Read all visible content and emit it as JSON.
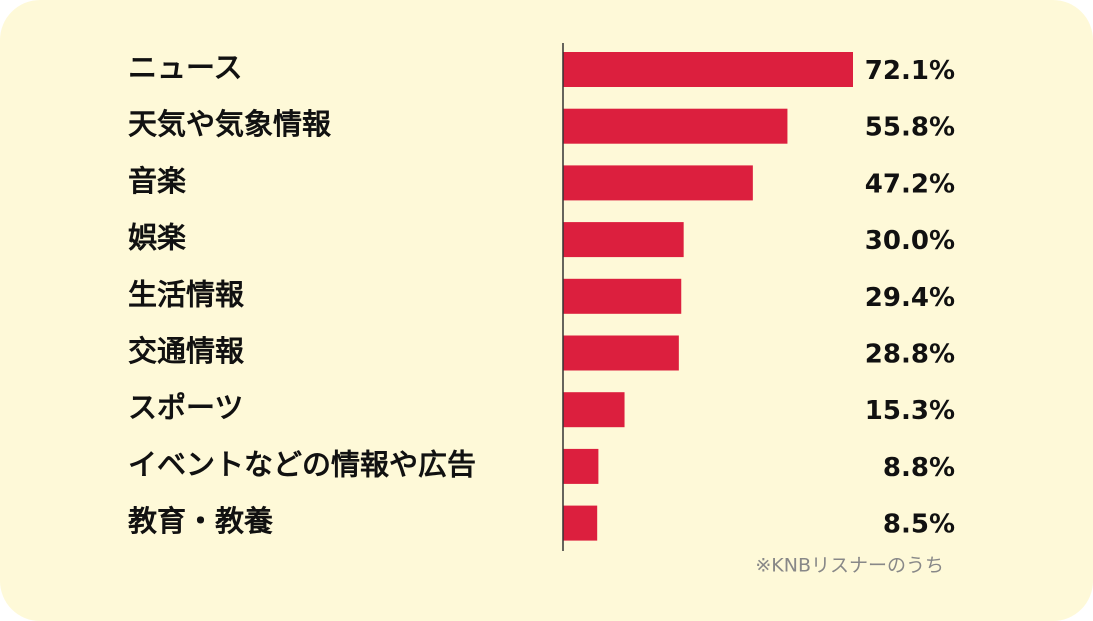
{
  "chart_data": {
    "type": "bar",
    "orientation": "horizontal",
    "categories": [
      "ニュース",
      "天気や気象情報",
      "音楽",
      "娯楽",
      "生活情報",
      "交通情報",
      "スポーツ",
      "イベントなどの情報や広告",
      "教育・教養"
    ],
    "values": [
      72.1,
      55.8,
      47.2,
      30.0,
      29.4,
      28.8,
      15.3,
      8.8,
      8.5
    ],
    "value_labels": [
      "72.1%",
      "55.8%",
      "47.2%",
      "30.0%",
      "29.4%",
      "28.8%",
      "15.3%",
      "8.8%",
      "8.5%"
    ],
    "note": "※KNBリスナーのうち",
    "bar_color": "#dc1f3e",
    "background_color": "#fef9d8",
    "grid": false,
    "legend": "none"
  }
}
